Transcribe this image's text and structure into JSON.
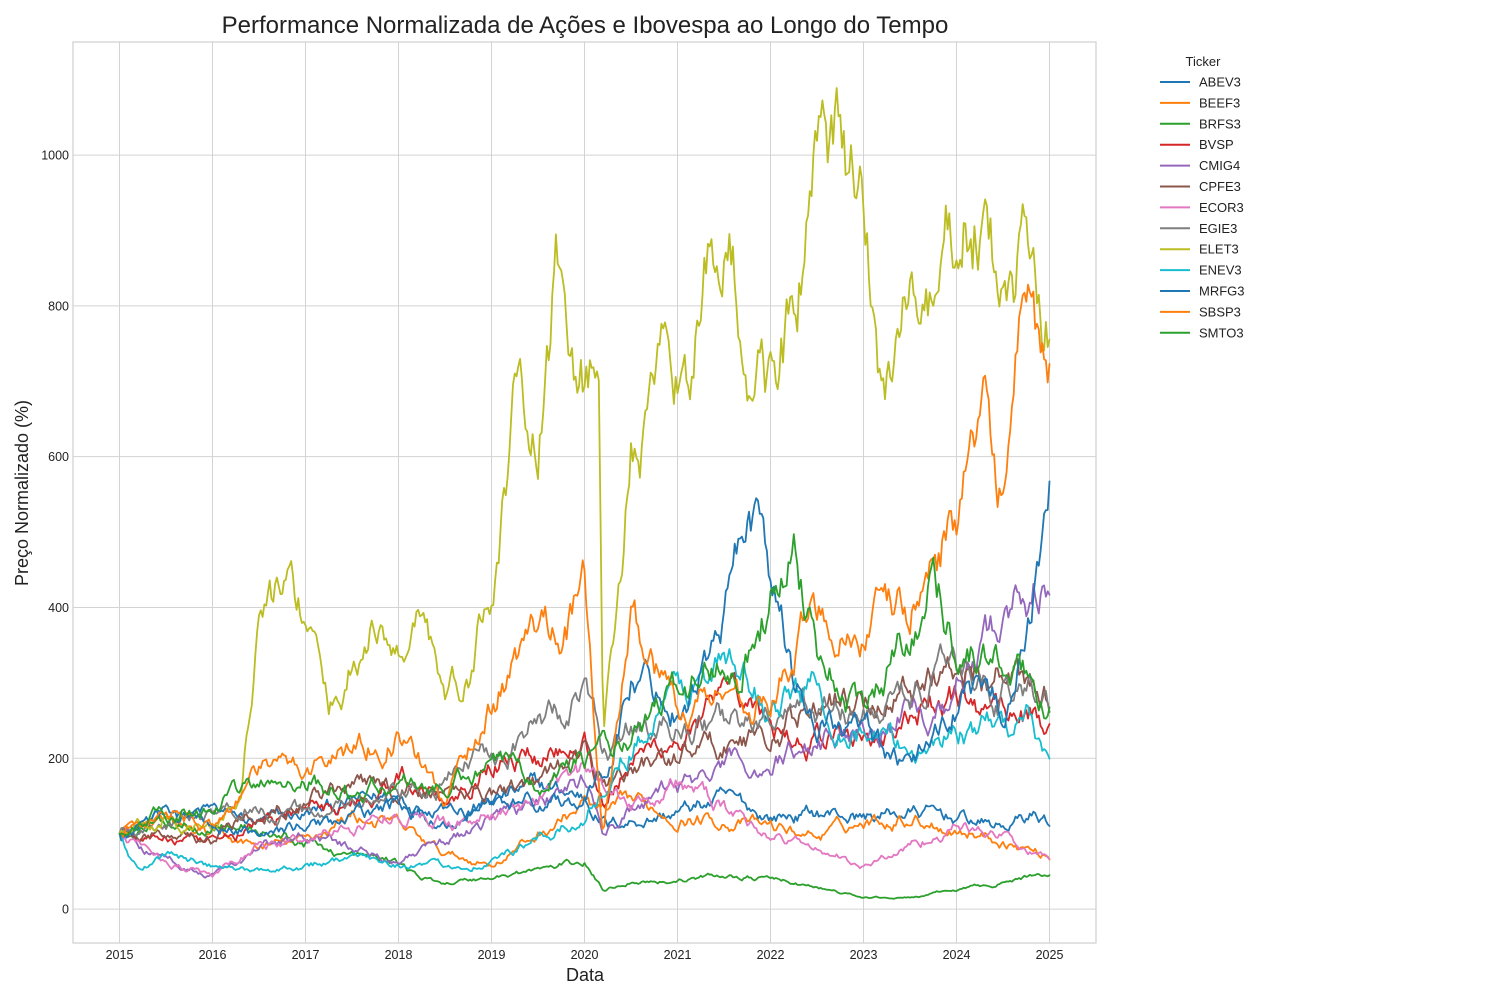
{
  "chart_data": {
    "type": "line",
    "title": "Performance Normalizada de Ações e Ibovespa ao Longo do Tempo",
    "xlabel": "Data",
    "ylabel": "Preço Normalizado (%)",
    "xlim": [
      2014.5,
      2025.5
    ],
    "ylim": [
      -45,
      1150
    ],
    "x_ticks": [
      2015,
      2016,
      2017,
      2018,
      2019,
      2020,
      2021,
      2022,
      2023,
      2024,
      2025
    ],
    "x_tick_labels": [
      "2015",
      "2016",
      "2017",
      "2018",
      "2019",
      "2020",
      "2021",
      "2022",
      "2023",
      "2024",
      "2025"
    ],
    "y_ticks": [
      0,
      200,
      400,
      600,
      800,
      1000
    ],
    "y_tick_labels": [
      "0",
      "200",
      "400",
      "600",
      "800",
      "1000"
    ],
    "grid": true,
    "legend_title": "Ticker",
    "legend_position": "outside-top-right",
    "series": [
      {
        "name": "ABEV3",
        "color": "#1f77b4",
        "x": [
          2015,
          2015.5,
          2016,
          2016.5,
          2017,
          2017.5,
          2018,
          2018.5,
          2019,
          2019.5,
          2020,
          2020.25,
          2020.5,
          2021,
          2021.5,
          2022,
          2022.5,
          2023,
          2023.5,
          2024,
          2024.5,
          2024.8,
          2025
        ],
        "values": [
          100,
          122,
          130,
          112,
          125,
          140,
          150,
          120,
          145,
          160,
          150,
          112,
          118,
          128,
          145,
          122,
          128,
          122,
          128,
          122,
          108,
          125,
          118
        ]
      },
      {
        "name": "BEEF3",
        "color": "#ff7f0e",
        "x": [
          2015,
          2015.5,
          2016,
          2016.5,
          2017,
          2017.5,
          2018,
          2018.5,
          2019,
          2019.5,
          2020,
          2020.25,
          2020.5,
          2021,
          2021.5,
          2022,
          2022.5,
          2023,
          2023.5,
          2024,
          2024.5,
          2025
        ],
        "values": [
          100,
          108,
          98,
          82,
          90,
          125,
          110,
          72,
          60,
          98,
          140,
          122,
          138,
          125,
          118,
          108,
          98,
          115,
          125,
          108,
          92,
          70
        ]
      },
      {
        "name": "BRFS3",
        "color": "#2ca02c",
        "x": [
          2015,
          2015.5,
          2016,
          2016.5,
          2017,
          2017.5,
          2018,
          2018.25,
          2018.5,
          2019,
          2019.5,
          2020,
          2020.2,
          2020.5,
          2021,
          2021.5,
          2022,
          2022.5,
          2023,
          2023.5,
          2024,
          2024.5,
          2025
        ],
        "values": [
          100,
          115,
          118,
          105,
          88,
          70,
          62,
          40,
          35,
          42,
          52,
          62,
          25,
          38,
          38,
          45,
          40,
          28,
          15,
          15,
          25,
          35,
          48
        ]
      },
      {
        "name": "BVSP",
        "color": "#d62728",
        "x": [
          2015,
          2015.5,
          2016,
          2016.5,
          2017,
          2017.5,
          2018,
          2018.5,
          2019,
          2019.5,
          2020,
          2020.2,
          2020.5,
          2021,
          2021.5,
          2022,
          2022.5,
          2023,
          2023.5,
          2024,
          2024.5,
          2025
        ],
        "values": [
          100,
          95,
          82,
          115,
          130,
          140,
          178,
          150,
          200,
          205,
          240,
          145,
          195,
          230,
          265,
          235,
          225,
          225,
          248,
          275,
          262,
          258
        ]
      },
      {
        "name": "CMIG4",
        "color": "#9467bd",
        "x": [
          2015,
          2015.5,
          2016,
          2016.5,
          2017,
          2017.5,
          2018,
          2018.5,
          2019,
          2019.5,
          2020,
          2020.2,
          2020.5,
          2021,
          2021.5,
          2022,
          2022.5,
          2023,
          2023.5,
          2024,
          2024.3,
          2024.5,
          2024.8,
          2025
        ],
        "values": [
          100,
          68,
          45,
          80,
          95,
          80,
          65,
          88,
          120,
          150,
          170,
          100,
          130,
          160,
          185,
          195,
          225,
          245,
          265,
          295,
          350,
          380,
          440,
          420
        ]
      },
      {
        "name": "CPFE3",
        "color": "#8c564b",
        "x": [
          2015,
          2015.5,
          2016,
          2016.5,
          2017,
          2017.5,
          2018,
          2018.5,
          2019,
          2019.5,
          2020,
          2020.2,
          2020.5,
          2021,
          2021.5,
          2022,
          2022.5,
          2023,
          2023.5,
          2024,
          2024.5,
          2025
        ],
        "values": [
          100,
          102,
          92,
          140,
          150,
          160,
          158,
          155,
          160,
          170,
          205,
          160,
          185,
          205,
          222,
          228,
          275,
          270,
          300,
          330,
          310,
          270
        ]
      },
      {
        "name": "ECOR3",
        "color": "#e377c2",
        "x": [
          2015,
          2015.5,
          2016,
          2016.5,
          2017,
          2017.5,
          2018,
          2018.5,
          2019,
          2019.5,
          2020,
          2020.5,
          2021,
          2021.5,
          2022,
          2022.5,
          2023,
          2023.5,
          2024,
          2024.5,
          2025
        ],
        "values": [
          100,
          65,
          42,
          85,
          92,
          110,
          135,
          115,
          125,
          140,
          180,
          145,
          170,
          130,
          98,
          80,
          55,
          85,
          110,
          95,
          62
        ]
      },
      {
        "name": "EGIE3",
        "color": "#7f7f7f",
        "x": [
          2015,
          2015.5,
          2016,
          2016.5,
          2017,
          2017.5,
          2018,
          2018.5,
          2019,
          2019.5,
          2020,
          2020.2,
          2020.5,
          2021,
          2021.5,
          2022,
          2022.5,
          2023,
          2023.5,
          2024,
          2024.5,
          2025
        ],
        "values": [
          100,
          115,
          120,
          140,
          125,
          135,
          145,
          165,
          220,
          245,
          285,
          200,
          240,
          240,
          250,
          240,
          265,
          250,
          290,
          300,
          295,
          280
        ]
      },
      {
        "name": "ELET3",
        "color": "#bcbd22",
        "x": [
          2015,
          2015.5,
          2016,
          2016.3,
          2016.5,
          2016.75,
          2017,
          2017.25,
          2017.5,
          2017.75,
          2018,
          2018.25,
          2018.5,
          2018.75,
          2019,
          2019.25,
          2019.5,
          2019.7,
          2020,
          2020.15,
          2020.2,
          2020.25,
          2020.5,
          2020.75,
          2021,
          2021.25,
          2021.5,
          2021.75,
          2022,
          2022.25,
          2022.5,
          2022.75,
          2023,
          2023.2,
          2023.5,
          2023.75,
          2024,
          2024.25,
          2024.5,
          2024.75,
          2025
        ],
        "values": [
          100,
          125,
          108,
          145,
          390,
          420,
          390,
          250,
          330,
          380,
          330,
          420,
          280,
          300,
          450,
          640,
          600,
          840,
          700,
          720,
          200,
          280,
          600,
          650,
          700,
          780,
          900,
          740,
          700,
          800,
          950,
          980,
          880,
          680,
          820,
          760,
          900,
          920,
          780,
          860,
          750
        ]
      },
      {
        "name": "ENEV3",
        "color": "#17becf",
        "x": [
          2015,
          2015.2,
          2015.5,
          2016,
          2016.5,
          2017,
          2017.5,
          2018,
          2018.5,
          2019,
          2019.5,
          2020,
          2020.2,
          2020.5,
          2021,
          2021.5,
          2022,
          2022.5,
          2023,
          2023.5,
          2024,
          2024.5,
          2024.8,
          2025
        ],
        "values": [
          100,
          55,
          75,
          55,
          50,
          60,
          68,
          62,
          55,
          65,
          90,
          120,
          170,
          230,
          280,
          320,
          270,
          290,
          235,
          205,
          240,
          235,
          255,
          190
        ]
      },
      {
        "name": "MRFG3",
        "color": "#1f77b4",
        "x": [
          2015,
          2015.5,
          2016,
          2016.5,
          2017,
          2017.5,
          2018,
          2018.5,
          2019,
          2019.5,
          2020,
          2020.2,
          2020.5,
          2021,
          2021.5,
          2021.75,
          2022,
          2022.25,
          2022.5,
          2023,
          2023.5,
          2024,
          2024.5,
          2024.8,
          2025
        ],
        "values": [
          100,
          130,
          108,
          100,
          110,
          118,
          140,
          122,
          138,
          145,
          150,
          180,
          310,
          275,
          380,
          550,
          450,
          300,
          260,
          230,
          175,
          280,
          270,
          380,
          535
        ]
      },
      {
        "name": "SBSP3",
        "color": "#ff7f0e",
        "x": [
          2015,
          2015.5,
          2016,
          2016.5,
          2017,
          2017.5,
          2018,
          2018.5,
          2019,
          2019.5,
          2020,
          2020.2,
          2020.5,
          2021,
          2021.5,
          2022,
          2022.5,
          2023,
          2023.5,
          2024,
          2024.3,
          2024.5,
          2024.7,
          2025
        ],
        "values": [
          100,
          130,
          110,
          180,
          190,
          215,
          240,
          140,
          280,
          370,
          420,
          95,
          380,
          270,
          295,
          280,
          395,
          375,
          395,
          530,
          610,
          555,
          740,
          660
        ]
      },
      {
        "name": "SMTO3",
        "color": "#2ca02c",
        "x": [
          2015,
          2015.5,
          2016,
          2016.5,
          2017,
          2017.5,
          2018,
          2018.5,
          2019,
          2019.5,
          2020,
          2020.2,
          2020.5,
          2021,
          2021.5,
          2021.8,
          2022,
          2022.25,
          2022.5,
          2023,
          2023.5,
          2023.75,
          2024,
          2024.5,
          2025
        ],
        "values": [
          100,
          128,
          140,
          160,
          180,
          150,
          168,
          160,
          185,
          185,
          205,
          215,
          210,
          290,
          335,
          375,
          415,
          510,
          350,
          255,
          380,
          450,
          360,
          325,
          280
        ]
      }
    ]
  }
}
